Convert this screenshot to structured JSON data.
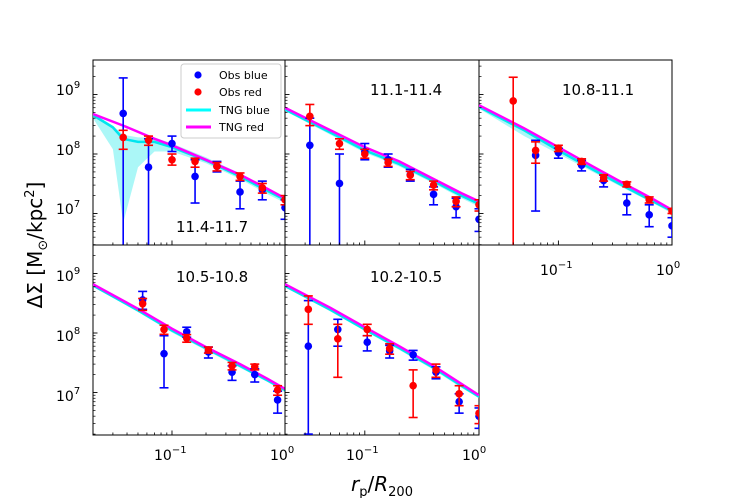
{
  "chart_data": {
    "type": "scatter",
    "xlabel": "r_p/R_200",
    "ylabel": "ΔΣ [M_⊙/kpc²]",
    "xscale": "log",
    "yscale": "log",
    "xlim": [
      0.02,
      1.0
    ],
    "ylim": [
      2000000,
      2500000000
    ],
    "x_ticks": [
      {
        "value": 0.1,
        "label": "10^-1"
      },
      {
        "value": 1.0,
        "label": "10^0"
      }
    ],
    "y_ticks": [
      {
        "value": 10000000,
        "label": "10^7"
      },
      {
        "value": 100000000,
        "label": "10^8"
      },
      {
        "value": 1000000000,
        "label": "10^9"
      }
    ],
    "legend": {
      "location": "top-right of first panel",
      "entries": [
        {
          "label": "Obs blue",
          "kind": "marker",
          "color": "#0000ff"
        },
        {
          "label": "Obs red",
          "kind": "marker",
          "color": "#ff0000"
        },
        {
          "label": "TNG blue",
          "kind": "line",
          "color": "#00ffff"
        },
        {
          "label": "TNG red",
          "kind": "line",
          "color": "#ff00ff"
        }
      ]
    },
    "colors": {
      "obs_blue": "#0000ff",
      "obs_red": "#ff0000",
      "tng_blue": "#00e5ee",
      "tng_red": "#ff00ff",
      "band": "#66f0f0"
    },
    "panels": [
      {
        "label": "11.4-11.7",
        "obs_blue": [
          {
            "x": 0.037,
            "y": 480000000,
            "lo": 2000000,
            "hi": 1900000000
          },
          {
            "x": 0.062,
            "y": 60000000,
            "lo": 2000000,
            "hi": 180000000
          },
          {
            "x": 0.1,
            "y": 150000000,
            "lo": 110000000,
            "hi": 200000000
          },
          {
            "x": 0.16,
            "y": 42000000,
            "lo": 15000000,
            "hi": 80000000
          },
          {
            "x": 0.25,
            "y": 62000000,
            "lo": 50000000,
            "hi": 75000000
          },
          {
            "x": 0.4,
            "y": 23000000,
            "lo": 12000000,
            "hi": 35000000
          },
          {
            "x": 0.63,
            "y": 25000000,
            "lo": 17000000,
            "hi": 35000000
          },
          {
            "x": 1.0,
            "y": 12500000,
            "lo": 8000000,
            "hi": 17000000
          }
        ],
        "obs_red": [
          {
            "x": 0.037,
            "y": 190000000,
            "lo": 120000000,
            "hi": 250000000
          },
          {
            "x": 0.062,
            "y": 170000000,
            "lo": 140000000,
            "hi": 200000000
          },
          {
            "x": 0.1,
            "y": 80000000,
            "lo": 65000000,
            "hi": 100000000
          },
          {
            "x": 0.16,
            "y": 75000000,
            "lo": 60000000,
            "hi": 85000000
          },
          {
            "x": 0.25,
            "y": 62000000,
            "lo": 52000000,
            "hi": 72000000
          },
          {
            "x": 0.4,
            "y": 42000000,
            "lo": 36000000,
            "hi": 48000000
          },
          {
            "x": 0.63,
            "y": 27000000,
            "lo": 22000000,
            "hi": 32000000
          },
          {
            "x": 1.0,
            "y": 17000000,
            "lo": 14000000,
            "hi": 20000000
          }
        ],
        "tng_blue": [
          {
            "x": 0.02,
            "y": 450000000,
            "lo": 400000000,
            "hi": 480000000
          },
          {
            "x": 0.03,
            "y": 280000000,
            "lo": 120000000,
            "hi": 300000000
          },
          {
            "x": 0.037,
            "y": 180000000,
            "lo": 7000000,
            "hi": 210000000
          },
          {
            "x": 0.05,
            "y": 160000000,
            "lo": 60000000,
            "hi": 190000000
          },
          {
            "x": 0.07,
            "y": 160000000,
            "lo": 110000000,
            "hi": 190000000
          },
          {
            "x": 0.1,
            "y": 130000000,
            "lo": 110000000,
            "hi": 150000000
          },
          {
            "x": 0.2,
            "y": 78000000,
            "lo": 70000000,
            "hi": 88000000
          },
          {
            "x": 0.4,
            "y": 42000000,
            "lo": 38000000,
            "hi": 47000000
          },
          {
            "x": 0.7,
            "y": 24000000,
            "lo": 21000000,
            "hi": 27000000
          },
          {
            "x": 1.0,
            "y": 17000000,
            "lo": 15000000,
            "hi": 19000000
          }
        ],
        "tng_red": [
          {
            "x": 0.02,
            "y": 470000000
          },
          {
            "x": 0.037,
            "y": 300000000
          },
          {
            "x": 0.07,
            "y": 180000000
          },
          {
            "x": 0.1,
            "y": 140000000
          },
          {
            "x": 0.2,
            "y": 80000000
          },
          {
            "x": 0.4,
            "y": 45000000
          },
          {
            "x": 0.7,
            "y": 26000000
          },
          {
            "x": 1.0,
            "y": 18000000
          }
        ]
      },
      {
        "label": "11.1-11.4",
        "obs_blue": [
          {
            "x": 0.033,
            "y": 140000000,
            "lo": 2000000,
            "hi": 400000000
          },
          {
            "x": 0.06,
            "y": 32000000,
            "lo": 2000000,
            "hi": 100000000
          },
          {
            "x": 0.1,
            "y": 110000000,
            "lo": 80000000,
            "hi": 150000000
          },
          {
            "x": 0.16,
            "y": 80000000,
            "lo": 60000000,
            "hi": 100000000
          },
          {
            "x": 0.25,
            "y": 45000000,
            "lo": 35000000,
            "hi": 55000000
          },
          {
            "x": 0.4,
            "y": 21000000,
            "lo": 14000000,
            "hi": 28000000
          },
          {
            "x": 0.63,
            "y": 13000000,
            "lo": 8500000,
            "hi": 18000000
          },
          {
            "x": 1.0,
            "y": 8000000,
            "lo": 5000000,
            "hi": 12000000
          }
        ],
        "obs_red": [
          {
            "x": 0.033,
            "y": 430000000,
            "lo": 300000000,
            "hi": 680000000
          },
          {
            "x": 0.06,
            "y": 150000000,
            "lo": 120000000,
            "hi": 180000000
          },
          {
            "x": 0.1,
            "y": 100000000,
            "lo": 85000000,
            "hi": 120000000
          },
          {
            "x": 0.16,
            "y": 72000000,
            "lo": 62000000,
            "hi": 82000000
          },
          {
            "x": 0.25,
            "y": 44000000,
            "lo": 37000000,
            "hi": 51000000
          },
          {
            "x": 0.4,
            "y": 30000000,
            "lo": 25000000,
            "hi": 35000000
          },
          {
            "x": 0.63,
            "y": 16000000,
            "lo": 13000000,
            "hi": 19000000
          },
          {
            "x": 1.0,
            "y": 14000000,
            "lo": 11000000,
            "hi": 17000000
          }
        ],
        "tng_blue": [
          {
            "x": 0.02,
            "y": 560000000,
            "lo": 530000000,
            "hi": 590000000
          },
          {
            "x": 0.05,
            "y": 230000000,
            "lo": 210000000,
            "hi": 250000000
          },
          {
            "x": 0.1,
            "y": 115000000,
            "lo": 105000000,
            "hi": 125000000
          },
          {
            "x": 0.2,
            "y": 68000000,
            "lo": 62000000,
            "hi": 74000000
          },
          {
            "x": 0.4,
            "y": 35000000,
            "lo": 32000000,
            "hi": 38000000
          },
          {
            "x": 0.7,
            "y": 20000000,
            "lo": 18000000,
            "hi": 22000000
          },
          {
            "x": 1.0,
            "y": 14500000,
            "lo": 13000000,
            "hi": 16000000
          }
        ],
        "tng_red": [
          {
            "x": 0.02,
            "y": 600000000
          },
          {
            "x": 0.05,
            "y": 250000000
          },
          {
            "x": 0.1,
            "y": 130000000
          },
          {
            "x": 0.2,
            "y": 75000000
          },
          {
            "x": 0.4,
            "y": 38000000
          },
          {
            "x": 0.7,
            "y": 22000000
          },
          {
            "x": 1.0,
            "y": 16000000
          }
        ]
      },
      {
        "label": "10.8-11.1",
        "obs_blue": [
          {
            "x": 0.063,
            "y": 95000000,
            "lo": 11000000,
            "hi": 170000000
          },
          {
            "x": 0.1,
            "y": 105000000,
            "lo": 85000000,
            "hi": 125000000
          },
          {
            "x": 0.16,
            "y": 65000000,
            "lo": 52000000,
            "hi": 78000000
          },
          {
            "x": 0.25,
            "y": 36000000,
            "lo": 28000000,
            "hi": 44000000
          },
          {
            "x": 0.4,
            "y": 15000000,
            "lo": 9500000,
            "hi": 21000000
          },
          {
            "x": 0.63,
            "y": 9500000,
            "lo": 6000000,
            "hi": 14000000
          },
          {
            "x": 1.0,
            "y": 6200000,
            "lo": 4000000,
            "hi": 8500000
          }
        ],
        "obs_red": [
          {
            "x": 0.04,
            "y": 780000000,
            "lo": 2000000,
            "hi": 1950000000
          },
          {
            "x": 0.063,
            "y": 115000000,
            "lo": 70000000,
            "hi": 160000000
          },
          {
            "x": 0.1,
            "y": 125000000,
            "lo": 110000000,
            "hi": 140000000
          },
          {
            "x": 0.16,
            "y": 75000000,
            "lo": 67000000,
            "hi": 83000000
          },
          {
            "x": 0.25,
            "y": 40000000,
            "lo": 35000000,
            "hi": 45000000
          },
          {
            "x": 0.4,
            "y": 31000000,
            "lo": 28000000,
            "hi": 34000000
          },
          {
            "x": 0.63,
            "y": 17000000,
            "lo": 15000000,
            "hi": 19000000
          },
          {
            "x": 1.0,
            "y": 11000000,
            "lo": 10000000,
            "hi": 12000000
          }
        ],
        "tng_blue": [
          {
            "x": 0.02,
            "y": 620000000,
            "lo": 580000000,
            "hi": 660000000
          },
          {
            "x": 0.05,
            "y": 250000000,
            "lo": 200000000,
            "hi": 280000000
          },
          {
            "x": 0.1,
            "y": 115000000,
            "lo": 100000000,
            "hi": 125000000
          },
          {
            "x": 0.2,
            "y": 55000000,
            "lo": 50000000,
            "hi": 60000000
          },
          {
            "x": 0.4,
            "y": 27000000,
            "lo": 25000000,
            "hi": 29000000
          },
          {
            "x": 0.7,
            "y": 15500000,
            "lo": 14500000,
            "hi": 16500000
          },
          {
            "x": 1.0,
            "y": 11000000,
            "lo": 10000000,
            "hi": 12000000
          }
        ],
        "tng_red": [
          {
            "x": 0.02,
            "y": 660000000
          },
          {
            "x": 0.05,
            "y": 270000000
          },
          {
            "x": 0.1,
            "y": 130000000
          },
          {
            "x": 0.2,
            "y": 62000000
          },
          {
            "x": 0.4,
            "y": 30000000
          },
          {
            "x": 0.7,
            "y": 17000000
          },
          {
            "x": 1.0,
            "y": 11500000
          }
        ]
      },
      {
        "label": "10.5-10.8",
        "obs_blue": [
          {
            "x": 0.055,
            "y": 360000000,
            "lo": 250000000,
            "hi": 500000000
          },
          {
            "x": 0.085,
            "y": 45000000,
            "lo": 12000000,
            "hi": 90000000
          },
          {
            "x": 0.135,
            "y": 105000000,
            "lo": 85000000,
            "hi": 125000000
          },
          {
            "x": 0.21,
            "y": 48000000,
            "lo": 38000000,
            "hi": 58000000
          },
          {
            "x": 0.34,
            "y": 22000000,
            "lo": 16000000,
            "hi": 28000000
          },
          {
            "x": 0.54,
            "y": 20000000,
            "lo": 15000000,
            "hi": 25000000
          },
          {
            "x": 0.86,
            "y": 7500000,
            "lo": 4500000,
            "hi": 10500000
          }
        ],
        "obs_red": [
          {
            "x": 0.055,
            "y": 310000000,
            "lo": 240000000,
            "hi": 380000000
          },
          {
            "x": 0.085,
            "y": 115000000,
            "lo": 95000000,
            "hi": 135000000
          },
          {
            "x": 0.135,
            "y": 82000000,
            "lo": 70000000,
            "hi": 94000000
          },
          {
            "x": 0.21,
            "y": 52000000,
            "lo": 46000000,
            "hi": 58000000
          },
          {
            "x": 0.34,
            "y": 28000000,
            "lo": 24000000,
            "hi": 32000000
          },
          {
            "x": 0.54,
            "y": 27000000,
            "lo": 24000000,
            "hi": 30000000
          },
          {
            "x": 0.86,
            "y": 11000000,
            "lo": 9000000,
            "hi": 13000000
          }
        ],
        "tng_blue": [
          {
            "x": 0.02,
            "y": 630000000,
            "lo": 600000000,
            "hi": 660000000
          },
          {
            "x": 0.05,
            "y": 240000000,
            "lo": 225000000,
            "hi": 255000000
          },
          {
            "x": 0.1,
            "y": 110000000,
            "lo": 102000000,
            "hi": 118000000
          },
          {
            "x": 0.2,
            "y": 55000000,
            "lo": 51000000,
            "hi": 59000000
          },
          {
            "x": 0.4,
            "y": 28000000,
            "lo": 26000000,
            "hi": 30000000
          },
          {
            "x": 0.7,
            "y": 16000000,
            "lo": 15000000,
            "hi": 17000000
          },
          {
            "x": 1.0,
            "y": 11000000,
            "lo": 10000000,
            "hi": 12000000
          }
        ],
        "tng_red": [
          {
            "x": 0.02,
            "y": 660000000
          },
          {
            "x": 0.05,
            "y": 255000000
          },
          {
            "x": 0.1,
            "y": 118000000
          },
          {
            "x": 0.2,
            "y": 58000000
          },
          {
            "x": 0.4,
            "y": 30000000
          },
          {
            "x": 0.7,
            "y": 17000000
          },
          {
            "x": 1.0,
            "y": 11500000
          }
        ]
      },
      {
        "label": "10.2-10.5",
        "obs_blue": [
          {
            "x": 0.032,
            "y": 60000000,
            "lo": 2000000,
            "hi": 350000000
          },
          {
            "x": 0.058,
            "y": 115000000,
            "lo": 60000000,
            "hi": 170000000
          },
          {
            "x": 0.105,
            "y": 70000000,
            "lo": 50000000,
            "hi": 90000000
          },
          {
            "x": 0.165,
            "y": 50000000,
            "lo": 38000000,
            "hi": 62000000
          },
          {
            "x": 0.265,
            "y": 43000000,
            "lo": 35000000,
            "hi": 51000000
          },
          {
            "x": 0.42,
            "y": 22000000,
            "lo": 17000000,
            "hi": 27000000
          },
          {
            "x": 0.67,
            "y": 7000000,
            "lo": 4500000,
            "hi": 9500000
          },
          {
            "x": 1.0,
            "y": 4000000,
            "lo": 2500000,
            "hi": 5500000
          }
        ],
        "obs_red": [
          {
            "x": 0.032,
            "y": 250000000,
            "lo": 140000000,
            "hi": 420000000
          },
          {
            "x": 0.058,
            "y": 80000000,
            "lo": 18000000,
            "hi": 140000000
          },
          {
            "x": 0.105,
            "y": 115000000,
            "lo": 90000000,
            "hi": 140000000
          },
          {
            "x": 0.165,
            "y": 55000000,
            "lo": 44000000,
            "hi": 66000000
          },
          {
            "x": 0.265,
            "y": 13000000,
            "lo": 3800000,
            "hi": 24000000
          },
          {
            "x": 0.42,
            "y": 24000000,
            "lo": 18000000,
            "hi": 30000000
          },
          {
            "x": 0.67,
            "y": 9500000,
            "lo": 6000000,
            "hi": 13000000
          },
          {
            "x": 1.0,
            "y": 4500000,
            "lo": 3000000,
            "hi": 6000000
          }
        ],
        "tng_blue": [
          {
            "x": 0.02,
            "y": 620000000,
            "lo": 590000000,
            "hi": 650000000
          },
          {
            "x": 0.05,
            "y": 245000000,
            "lo": 230000000,
            "hi": 260000000
          },
          {
            "x": 0.1,
            "y": 115000000,
            "lo": 108000000,
            "hi": 122000000
          },
          {
            "x": 0.2,
            "y": 56000000,
            "lo": 52000000,
            "hi": 60000000
          },
          {
            "x": 0.4,
            "y": 26000000,
            "lo": 24000000,
            "hi": 28000000
          },
          {
            "x": 0.7,
            "y": 13000000,
            "lo": 12000000,
            "hi": 14000000
          },
          {
            "x": 1.0,
            "y": 8500000,
            "lo": 8000000,
            "hi": 9000000
          }
        ],
        "tng_red": [
          {
            "x": 0.02,
            "y": 660000000
          },
          {
            "x": 0.05,
            "y": 265000000
          },
          {
            "x": 0.1,
            "y": 125000000
          },
          {
            "x": 0.2,
            "y": 60000000
          },
          {
            "x": 0.4,
            "y": 28000000
          },
          {
            "x": 0.7,
            "y": 14000000
          },
          {
            "x": 1.0,
            "y": 9000000
          }
        ]
      }
    ]
  }
}
